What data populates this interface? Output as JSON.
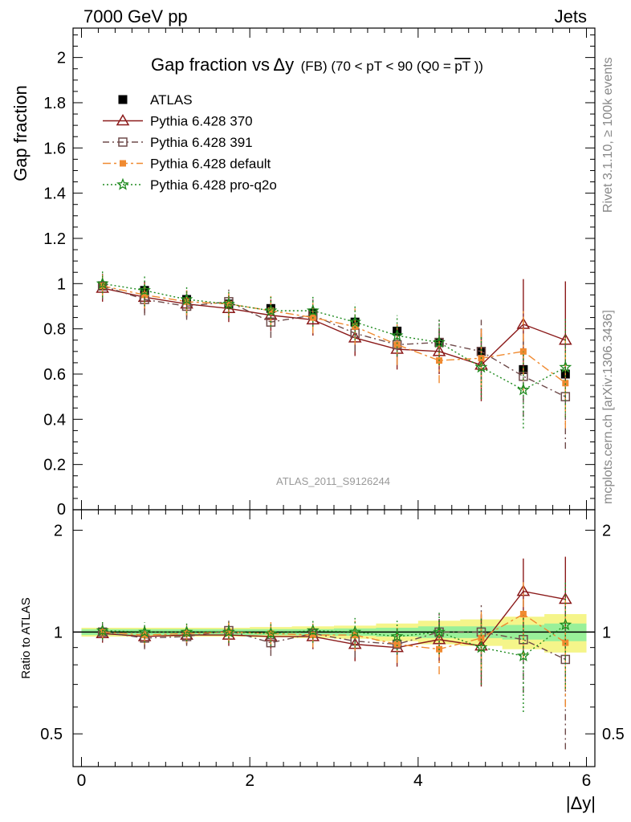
{
  "header": {
    "left": "7000 GeV pp",
    "right": "Jets"
  },
  "side_labels": {
    "rivet": "Rivet 3.1.10, ≥ 100k events",
    "mcplots": "mcplots.cern.ch [arXiv:1306.3436]"
  },
  "plot_title": {
    "main_a": "Gap fraction vs",
    "main_b": "Δy",
    "sub": "(FB) (70 < pT <  90 (Q0 =",
    "over": "pT",
    "close": "))"
  },
  "watermark": "ATLAS_2011_S9126244",
  "colors": {
    "ATLAS": "#000000",
    "Pythia 6.428 370": "#8b1a1a",
    "Pythia 6.428 391": "#6e4a4a",
    "Pythia 6.428 default": "#f08a30",
    "Pythia 6.428 pro-q2o": "#1e8a1e",
    "band_inner": "#99f099",
    "band_outer": "#f5f58a"
  },
  "chart_data": [
    {
      "type": "scatter",
      "panel": "main",
      "ylabel": "Gap fraction",
      "ylim": [
        0,
        2.13
      ],
      "xlim": [
        -0.1,
        6.1
      ],
      "y_ticks": [
        0.2,
        0.4,
        0.6,
        0.8,
        1,
        1.2,
        1.4,
        1.6,
        1.8,
        2
      ],
      "y_tick_labels": [
        "0.2",
        "0.4",
        "0.6",
        "0.8",
        "1",
        "1.2",
        "1.4",
        "1.6",
        "1.8",
        "2"
      ],
      "y_zero_label": "0",
      "legend_placement": "top-left",
      "x": [
        0.25,
        0.75,
        1.25,
        1.75,
        2.25,
        2.75,
        3.25,
        3.75,
        4.25,
        4.75,
        5.25,
        5.75
      ],
      "series": [
        {
          "name": "ATLAS",
          "marker": "square-filled",
          "line": "none",
          "values": [
            0.99,
            0.97,
            0.93,
            0.91,
            0.89,
            0.87,
            0.83,
            0.79,
            0.74,
            0.7,
            0.62,
            0.6
          ],
          "err": [
            0.02,
            0.02,
            0.02,
            0.02,
            0.02,
            0.02,
            0.02,
            0.02,
            0.02,
            0.02,
            0.02,
            0.02
          ]
        },
        {
          "name": "Pythia 6.428 370",
          "marker": "triangle-open",
          "line": "solid",
          "values": [
            0.98,
            0.94,
            0.91,
            0.89,
            0.86,
            0.84,
            0.76,
            0.71,
            0.7,
            0.64,
            0.82,
            0.75
          ],
          "err": [
            0.06,
            0.07,
            0.06,
            0.06,
            0.07,
            0.07,
            0.08,
            0.09,
            0.1,
            0.16,
            0.2,
            0.26
          ]
        },
        {
          "name": "Pythia 6.428 391",
          "marker": "square-open",
          "line": "dashdot",
          "values": [
            0.99,
            0.93,
            0.9,
            0.92,
            0.83,
            0.86,
            0.78,
            0.73,
            0.74,
            0.7,
            0.59,
            0.5
          ],
          "err": [
            0.06,
            0.07,
            0.06,
            0.06,
            0.07,
            0.07,
            0.08,
            0.09,
            0.1,
            0.14,
            0.18,
            0.23
          ]
        },
        {
          "name": "Pythia 6.428 default",
          "marker": "square-filled-small",
          "line": "dashdot-long",
          "values": [
            0.99,
            0.95,
            0.92,
            0.91,
            0.88,
            0.85,
            0.81,
            0.73,
            0.66,
            0.67,
            0.7,
            0.56
          ],
          "err": [
            0.05,
            0.06,
            0.06,
            0.06,
            0.07,
            0.07,
            0.08,
            0.09,
            0.1,
            0.13,
            0.18,
            0.2
          ]
        },
        {
          "name": "Pythia 6.428 pro-q2o",
          "marker": "star-open",
          "line": "dotted",
          "values": [
            1.0,
            0.97,
            0.93,
            0.91,
            0.88,
            0.88,
            0.83,
            0.77,
            0.74,
            0.63,
            0.53,
            0.63
          ],
          "err": [
            0.06,
            0.07,
            0.06,
            0.06,
            0.07,
            0.07,
            0.08,
            0.09,
            0.1,
            0.14,
            0.17,
            0.22
          ]
        }
      ]
    },
    {
      "type": "scatter",
      "panel": "ratio",
      "ylabel": "Ratio to ATLAS",
      "xlabel": "|Δy|",
      "ylim": [
        0.4,
        2.3
      ],
      "xlim": [
        -0.1,
        6.1
      ],
      "x_ticks": [
        0,
        2,
        4,
        6
      ],
      "x_tick_labels": [
        "0",
        "2",
        "4",
        "6"
      ],
      "y_ticks": [
        0.5,
        1,
        2
      ],
      "y_tick_labels": [
        "0.5",
        "1",
        "2"
      ],
      "reference_line": 1,
      "x": [
        0.25,
        0.75,
        1.25,
        1.75,
        2.25,
        2.75,
        3.25,
        3.75,
        4.25,
        4.75,
        5.25,
        5.75
      ],
      "band_inner": [
        0.02,
        0.02,
        0.02,
        0.02,
        0.02,
        0.02,
        0.025,
        0.03,
        0.04,
        0.04,
        0.05,
        0.06
      ],
      "band_outer": [
        0.03,
        0.03,
        0.03,
        0.03,
        0.035,
        0.04,
        0.045,
        0.06,
        0.08,
        0.09,
        0.11,
        0.13
      ],
      "series": [
        {
          "name": "Pythia 6.428 370",
          "marker": "triangle-open",
          "line": "solid",
          "values": [
            0.99,
            0.97,
            0.98,
            0.98,
            0.97,
            0.97,
            0.92,
            0.9,
            0.95,
            0.91,
            1.32,
            1.25
          ],
          "err": [
            0.06,
            0.07,
            0.06,
            0.07,
            0.08,
            0.08,
            0.1,
            0.11,
            0.14,
            0.22,
            0.33,
            0.42
          ]
        },
        {
          "name": "Pythia 6.428 391",
          "marker": "square-open",
          "line": "dashdot",
          "values": [
            1.0,
            0.96,
            0.97,
            1.01,
            0.93,
            0.99,
            0.94,
            0.92,
            1.0,
            1.0,
            0.95,
            0.83
          ],
          "err": [
            0.06,
            0.07,
            0.06,
            0.07,
            0.08,
            0.08,
            0.1,
            0.11,
            0.14,
            0.2,
            0.29,
            0.38
          ]
        },
        {
          "name": "Pythia 6.428 default",
          "marker": "square-filled-small",
          "line": "dashdot-long",
          "values": [
            1.0,
            0.98,
            0.99,
            1.0,
            0.99,
            0.98,
            0.98,
            0.92,
            0.89,
            0.96,
            1.13,
            0.93
          ],
          "err": [
            0.05,
            0.06,
            0.06,
            0.07,
            0.08,
            0.08,
            0.1,
            0.11,
            0.14,
            0.19,
            0.29,
            0.33
          ]
        },
        {
          "name": "Pythia 6.428 pro-q2o",
          "marker": "star-open",
          "line": "dotted",
          "values": [
            1.01,
            1.0,
            1.0,
            1.0,
            0.99,
            1.01,
            1.0,
            0.97,
            1.0,
            0.9,
            0.85,
            1.05
          ],
          "err": [
            0.06,
            0.07,
            0.06,
            0.07,
            0.08,
            0.08,
            0.1,
            0.11,
            0.14,
            0.2,
            0.27,
            0.37
          ]
        }
      ]
    }
  ]
}
